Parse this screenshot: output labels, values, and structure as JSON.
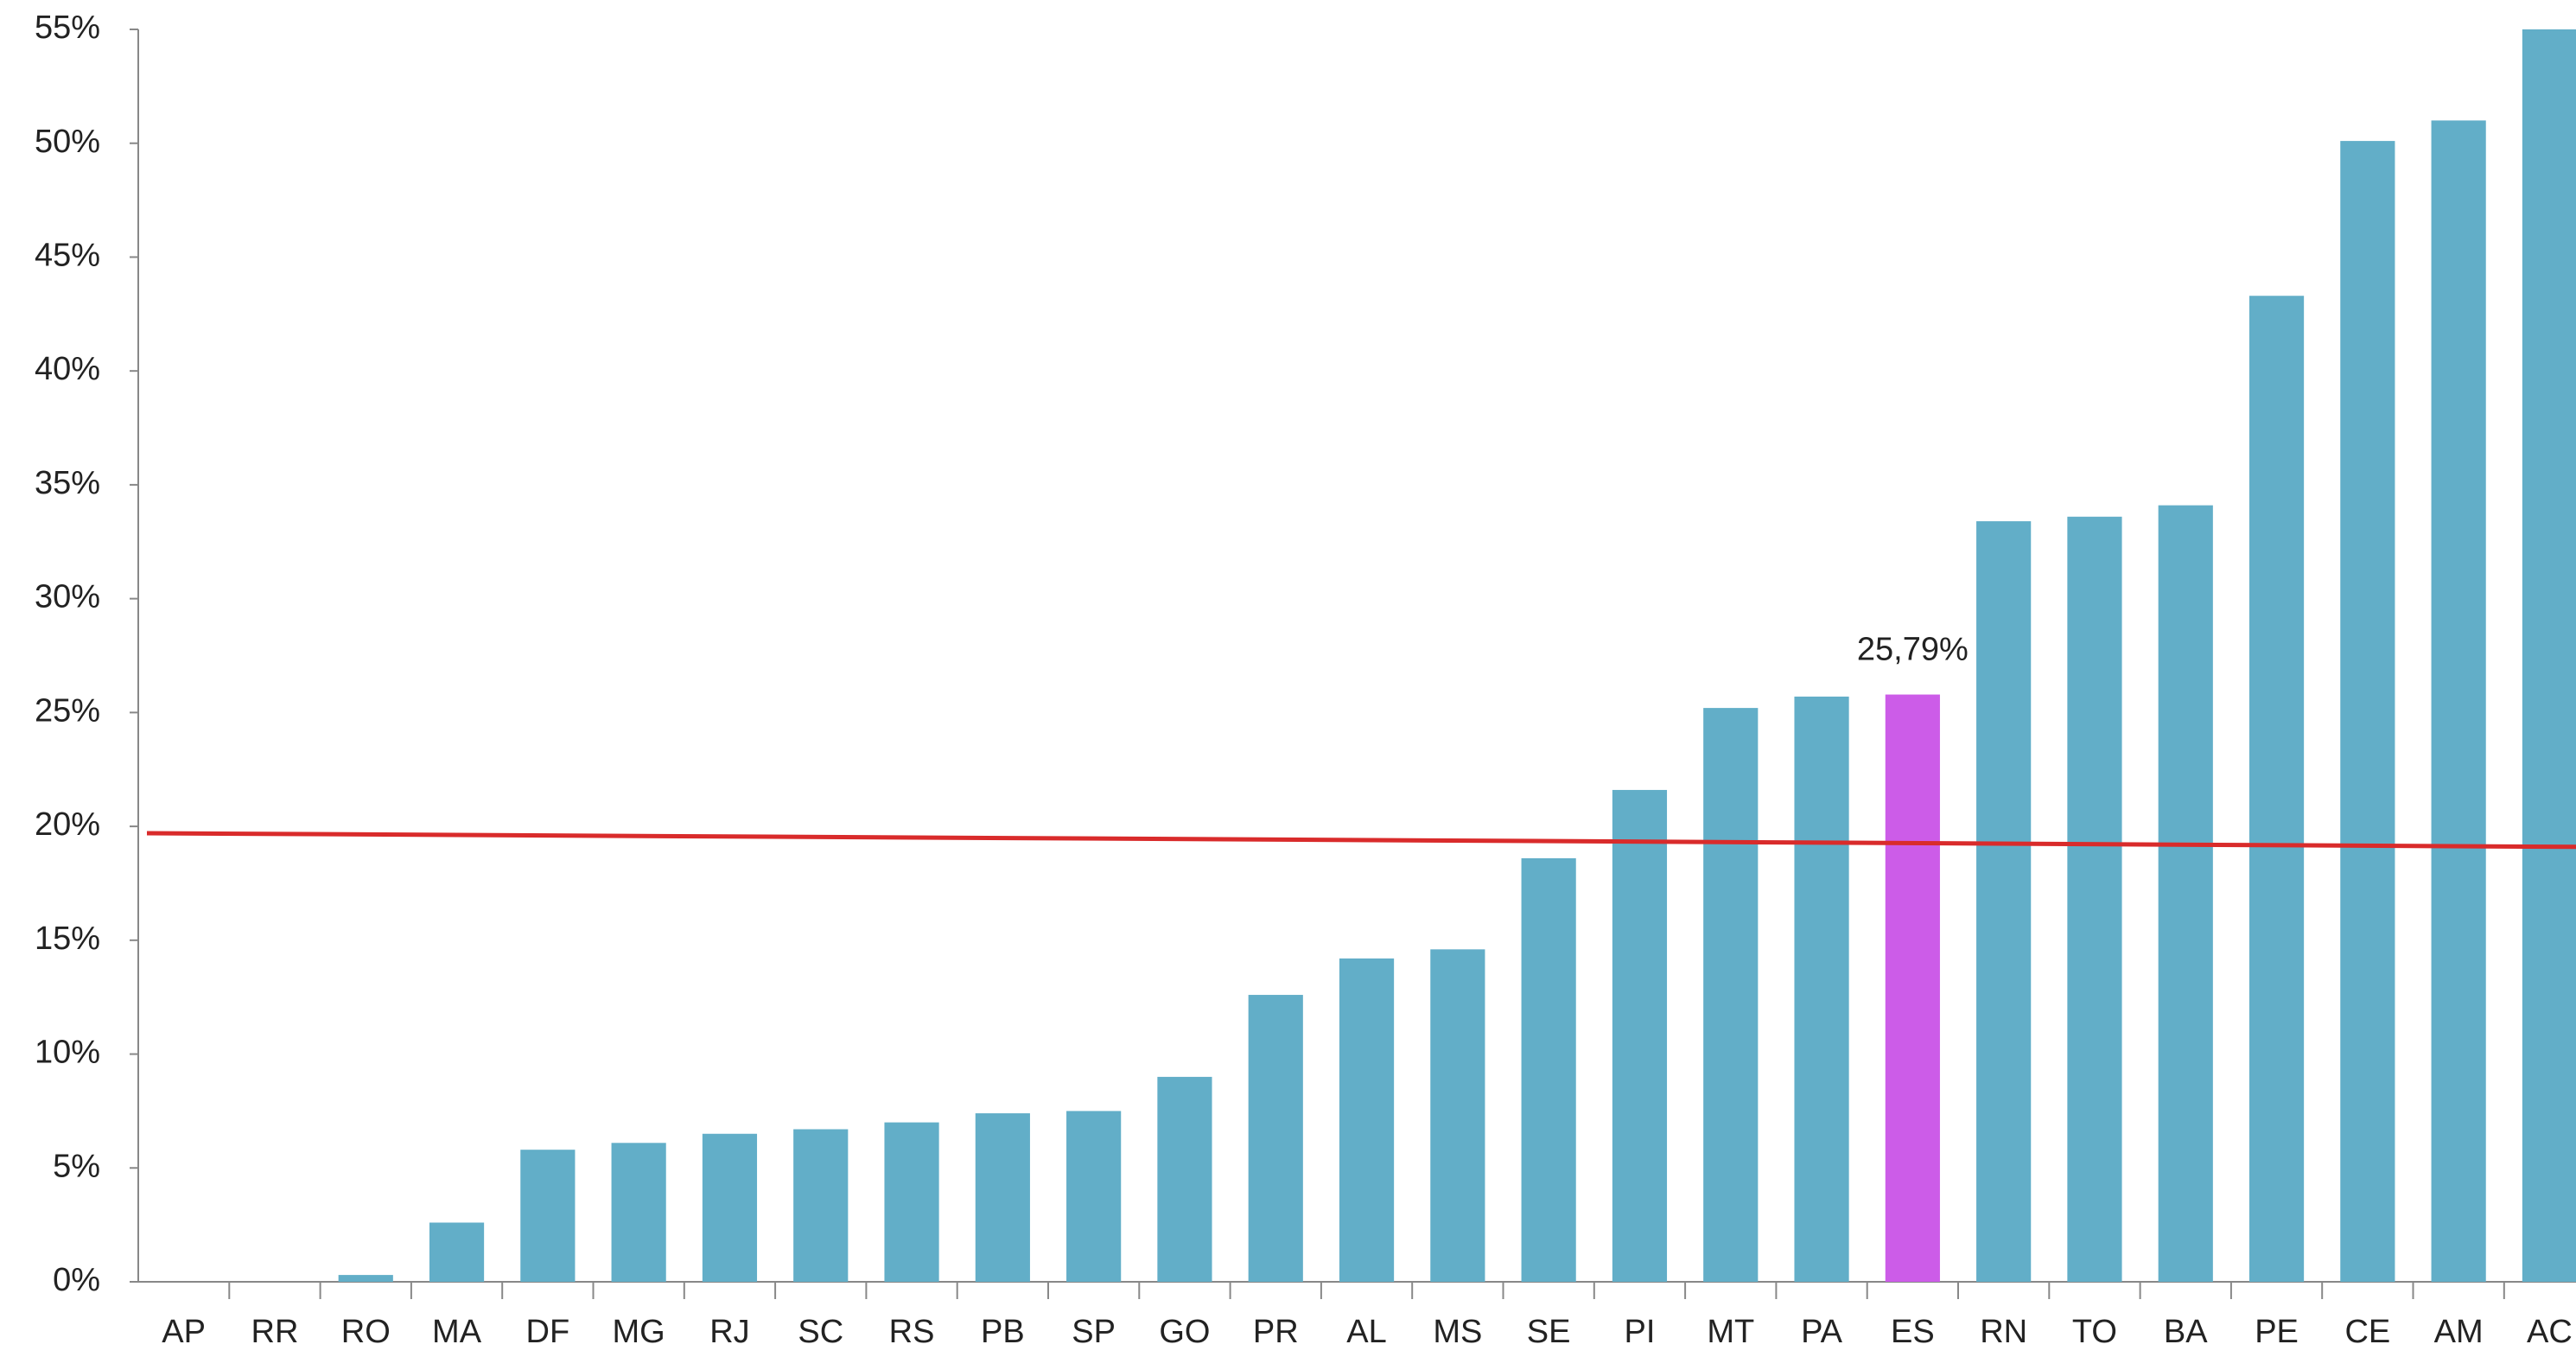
{
  "chart_data": {
    "type": "bar",
    "categories": [
      "AP",
      "RR",
      "RO",
      "MA",
      "DF",
      "MG",
      "RJ",
      "SC",
      "RS",
      "PB",
      "SP",
      "GO",
      "PR",
      "AL",
      "MS",
      "SE",
      "PI",
      "MT",
      "PA",
      "ES",
      "RN",
      "TO",
      "BA",
      "PE",
      "CE",
      "AM",
      "AC"
    ],
    "values": [
      0,
      0,
      0.3,
      2.6,
      5.8,
      6.1,
      6.5,
      6.7,
      7.0,
      7.4,
      7.5,
      9.0,
      12.6,
      14.2,
      14.6,
      18.6,
      21.6,
      25.2,
      25.7,
      25.79,
      33.4,
      33.6,
      34.1,
      43.3,
      50.1,
      51.0,
      55
    ],
    "value_labels": [
      null,
      null,
      null,
      null,
      null,
      null,
      null,
      null,
      null,
      null,
      null,
      null,
      null,
      null,
      null,
      null,
      null,
      null,
      null,
      "25,79%",
      null,
      null,
      null,
      null,
      null,
      null,
      null
    ],
    "colors": [
      "#62aec8",
      "#62aec8",
      "#62aec8",
      "#62aec8",
      "#62aec8",
      "#62aec8",
      "#62aec8",
      "#62aec8",
      "#62aec8",
      "#62aec8",
      "#62aec8",
      "#62aec8",
      "#62aec8",
      "#62aec8",
      "#62aec8",
      "#62aec8",
      "#62aec8",
      "#62aec8",
      "#62aec8",
      "#cc5ce8",
      "#62aec8",
      "#62aec8",
      "#62aec8",
      "#62aec8",
      "#62aec8",
      "#62aec8",
      "#62aec8"
    ],
    "trend_line": {
      "color": "#d92b2b",
      "start": 19.7,
      "end": 19.1
    },
    "ylim": [
      0,
      55
    ],
    "yticks": [
      {
        "value": 0,
        "label": "0%"
      },
      {
        "value": 5,
        "label": "5%"
      },
      {
        "value": 10,
        "label": "10%"
      },
      {
        "value": 15,
        "label": "15%"
      },
      {
        "value": 20,
        "label": "20%"
      },
      {
        "value": 25,
        "label": "25%"
      },
      {
        "value": 30,
        "label": "30%"
      },
      {
        "value": 35,
        "label": "35%"
      },
      {
        "value": 40,
        "label": "40%"
      },
      {
        "value": 45,
        "label": "45%"
      },
      {
        "value": 50,
        "label": "50%"
      },
      {
        "value": 55,
        "label": "55%"
      }
    ],
    "grid": false
  }
}
